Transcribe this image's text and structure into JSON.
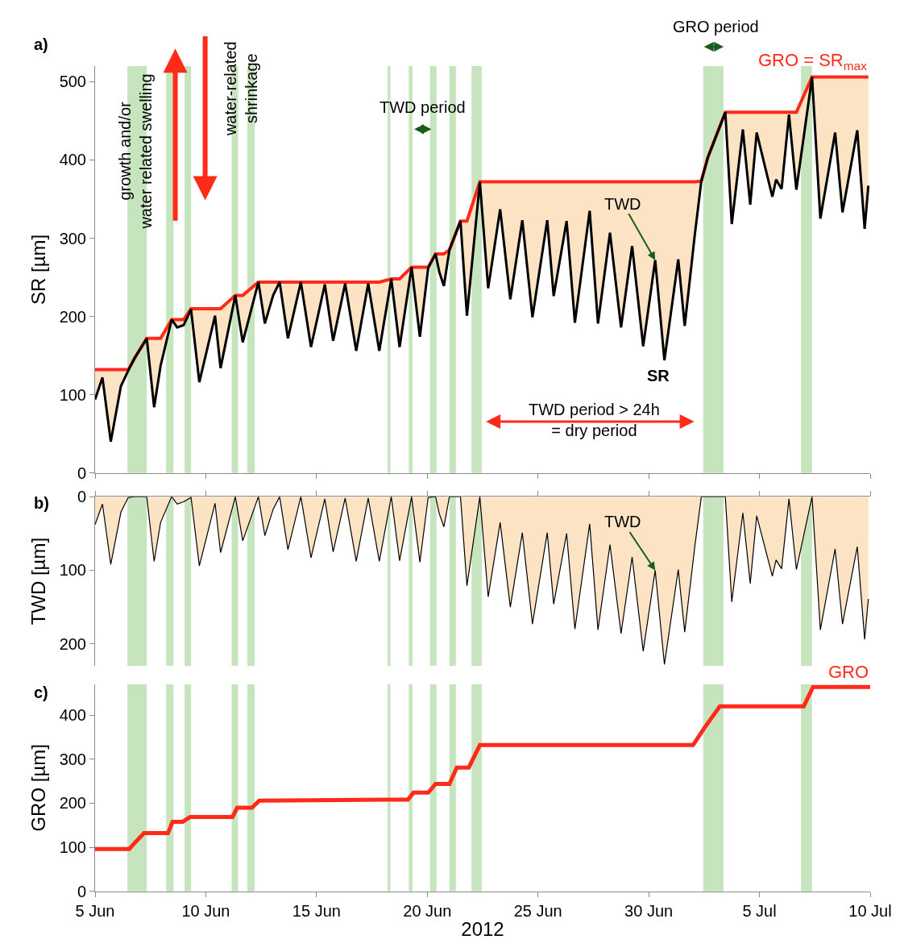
{
  "chart_data": [
    {
      "type": "line",
      "ylabel": "SR [µm]",
      "xlim": [
        "2012-06-05",
        "2012-07-10"
      ],
      "ylim": [
        0,
        520
      ],
      "yticks": [
        0,
        100,
        200,
        300,
        400,
        500
      ],
      "xticks": [
        {
          "value": "2012-06-05",
          "label": null
        },
        {
          "value": "2012-06-10",
          "label": null
        },
        {
          "value": "2012-06-15",
          "label": null
        },
        {
          "value": "2012-06-20",
          "label": null
        },
        {
          "value": "2012-06-25",
          "label": null
        },
        {
          "value": "2012-06-30",
          "label": null
        },
        {
          "value": "2012-07-05",
          "label": null
        },
        {
          "value": "2012-07-10",
          "label": null
        }
      ],
      "tick_labels": "y",
      "grid": false,
      "x": [
        "2012-06-05T00:00",
        "2012-06-05T08:00",
        "2012-06-05T17:00",
        "2012-06-06T04:00",
        "2012-06-06T12:00",
        "2012-06-06T19:00",
        "2012-06-07T08:00",
        "2012-06-07T16:00",
        "2012-06-07T23:00",
        "2012-06-08T11:00",
        "2012-06-08T17:00",
        "2012-06-09T00:00",
        "2012-06-09T08:00",
        "2012-06-09T17:00",
        "2012-06-10T10:00",
        "2012-06-10T16:00",
        "2012-06-11T08:00",
        "2012-06-11T16:00",
        "2012-06-12T09:00",
        "2012-06-12T16:00",
        "2012-06-13T01:00",
        "2012-06-13T08:00",
        "2012-06-13T17:00",
        "2012-06-14T07:00",
        "2012-06-14T18:00",
        "2012-06-15T09:00",
        "2012-06-15T18:00",
        "2012-06-16T07:00",
        "2012-06-16T19:00",
        "2012-06-17T08:00",
        "2012-06-17T20:00",
        "2012-06-18T09:00",
        "2012-06-18T18:00",
        "2012-06-19T07:00",
        "2012-06-19T16:00",
        "2012-06-20T01:00",
        "2012-06-20T09:00",
        "2012-06-20T13:00",
        "2012-06-20T18:00",
        "2012-06-21T00:00",
        "2012-06-21T12:00",
        "2012-06-21T19:00",
        "2012-06-22T09:00",
        "2012-06-22T18:00",
        "2012-06-23T07:00",
        "2012-06-23T18:00",
        "2012-06-24T07:00",
        "2012-06-24T18:00",
        "2012-06-25T10:00",
        "2012-06-25T17:00",
        "2012-06-26T07:00",
        "2012-06-26T16:00",
        "2012-06-27T08:00",
        "2012-06-27T17:00",
        "2012-06-28T06:00",
        "2012-06-28T18:00",
        "2012-06-29T06:00",
        "2012-06-29T18:00",
        "2012-06-30T07:00",
        "2012-06-30T17:00",
        "2012-07-01T08:00",
        "2012-07-01T15:00",
        "2012-07-02T02:00",
        "2012-07-02T09:00",
        "2012-07-02T16:00",
        "2012-07-03T11:00",
        "2012-07-03T18:00",
        "2012-07-04T06:00",
        "2012-07-04T14:00",
        "2012-07-04T21:00",
        "2012-07-05T14:00",
        "2012-07-05T18:00",
        "2012-07-06T00:00",
        "2012-07-06T08:00",
        "2012-07-06T16:00",
        "2012-07-07T09:00",
        "2012-07-07T18:00",
        "2012-07-08T10:00",
        "2012-07-08T18:00",
        "2012-07-09T10:00",
        "2012-07-09T18:00",
        "2012-07-09T22:00"
      ],
      "series": [
        {
          "name": "GRO = SR$_{max}$",
          "type": "line",
          "color": "#ff2a1a",
          "values": [
            132,
            132,
            132,
            132,
            132,
            147,
            172,
            172,
            172,
            196,
            196,
            196,
            210,
            210,
            210,
            210,
            227,
            227,
            244,
            244,
            244,
            244,
            244,
            244,
            244,
            244,
            244,
            244,
            244,
            244,
            244,
            248,
            248,
            263,
            263,
            263,
            280,
            280,
            280,
            285,
            322,
            322,
            372,
            372,
            372,
            372,
            372,
            372,
            372,
            372,
            372,
            372,
            372,
            372,
            372,
            372,
            372,
            372,
            372,
            372,
            372,
            372,
            372,
            373,
            403,
            461,
            461,
            461,
            461,
            461,
            461,
            461,
            461,
            461,
            461,
            506,
            506,
            506,
            506,
            506,
            506,
            506
          ],
          "upper": [
            132,
            132,
            132,
            132,
            132,
            147,
            172,
            172,
            172,
            196,
            196,
            196,
            210,
            210,
            210,
            210,
            227,
            227,
            244,
            244,
            244,
            244,
            244,
            244,
            244,
            244,
            244,
            244,
            244,
            244,
            244,
            248,
            248,
            263,
            263,
            263,
            280,
            280,
            280,
            285,
            322,
            322,
            372,
            372,
            372,
            372,
            372,
            372,
            372,
            372,
            372,
            372,
            372,
            372,
            372,
            372,
            372,
            372,
            372,
            372,
            372,
            372,
            372,
            373,
            403,
            461,
            461,
            461,
            461,
            461,
            461,
            461,
            461,
            461,
            461,
            506,
            506,
            506,
            506,
            506,
            506,
            506
          ],
          "lower": [
            94,
            122,
            40,
            111,
            131,
            147,
            172,
            84,
            137,
            196,
            186,
            189,
            209,
            116,
            201,
            134,
            227,
            167,
            244,
            191,
            227,
            244,
            172,
            244,
            161,
            241,
            169,
            242,
            156,
            242,
            156,
            248,
            161,
            263,
            174,
            262,
            280,
            257,
            239,
            285,
            322,
            201,
            372,
            236,
            337,
            222,
            323,
            199,
            323,
            226,
            322,
            192,
            335,
            191,
            307,
            186,
            290,
            162,
            272,
            144,
            273,
            188,
            305,
            373,
            403,
            461,
            318,
            439,
            343,
            435,
            353,
            375,
            363,
            458,
            362,
            506,
            325,
            435,
            333,
            438,
            312,
            367
          ]
        },
        {
          "name": "SR",
          "type": "line",
          "color": "#000000",
          "values": [
            94,
            122,
            40,
            111,
            131,
            147,
            172,
            84,
            137,
            196,
            186,
            189,
            209,
            116,
            201,
            134,
            227,
            167,
            244,
            191,
            227,
            244,
            172,
            244,
            161,
            241,
            169,
            242,
            156,
            242,
            156,
            248,
            161,
            263,
            174,
            262,
            280,
            257,
            239,
            285,
            322,
            201,
            372,
            236,
            337,
            222,
            323,
            199,
            323,
            226,
            322,
            192,
            335,
            191,
            307,
            186,
            290,
            162,
            272,
            144,
            273,
            188,
            305,
            373,
            403,
            461,
            318,
            439,
            343,
            435,
            353,
            375,
            363,
            458,
            362,
            506,
            325,
            435,
            333,
            438,
            312,
            367
          ]
        }
      ],
      "bands": [
        {
          "axis": "x",
          "from": "2012-06-06T11:00",
          "to": "2012-06-07T08:00",
          "color": "#c6e5be"
        },
        {
          "axis": "x",
          "from": "2012-06-08T05:00",
          "to": "2012-06-08T13:00",
          "color": "#c6e5be"
        },
        {
          "axis": "x",
          "from": "2012-06-09T01:00",
          "to": "2012-06-09T08:00",
          "color": "#c6e5be"
        },
        {
          "axis": "x",
          "from": "2012-06-11T04:00",
          "to": "2012-06-11T11:00",
          "color": "#c6e5be"
        },
        {
          "axis": "x",
          "from": "2012-06-11T21:00",
          "to": "2012-06-12T05:00",
          "color": "#c6e5be"
        },
        {
          "axis": "x",
          "from": "2012-06-18T05:00",
          "to": "2012-06-18T08:00",
          "color": "#c6e5be"
        },
        {
          "axis": "x",
          "from": "2012-06-19T04:00",
          "to": "2012-06-19T08:00",
          "color": "#c6e5be"
        },
        {
          "axis": "x",
          "from": "2012-06-20T03:00",
          "to": "2012-06-20T10:00",
          "color": "#c6e5be"
        },
        {
          "axis": "x",
          "from": "2012-06-21T00:00",
          "to": "2012-06-21T07:00",
          "color": "#c6e5be"
        },
        {
          "axis": "x",
          "from": "2012-06-22T00:00",
          "to": "2012-06-22T11:00",
          "color": "#c6e5be"
        },
        {
          "axis": "x",
          "from": "2012-07-02T11:00",
          "to": "2012-07-03T09:00",
          "color": "#c6e5be"
        },
        {
          "axis": "x",
          "from": "2012-07-06T21:00",
          "to": "2012-07-07T09:00",
          "color": "#c6e5be"
        }
      ],
      "annotations": [
        "a)",
        "growth and/or\nwater related swelling",
        "water-related\nshrinkage",
        "TWD period",
        "GRO period",
        {
          "text": "TWD",
          "x": "2012-06-30T07:00",
          "y": 272
        },
        "TWD period > 24h\n= dry period"
      ]
    },
    {
      "type": "area",
      "ylabel": "TWD [µm]",
      "xlim": [
        "2012-06-05",
        "2012-07-10"
      ],
      "ylim": [
        230,
        0
      ],
      "yticks": [
        0,
        100,
        200
      ],
      "xticks": [
        {
          "value": "2012-06-05",
          "label": null
        },
        {
          "value": "2012-06-10",
          "label": null
        },
        {
          "value": "2012-06-15",
          "label": null
        },
        {
          "value": "2012-06-20",
          "label": null
        },
        {
          "value": "2012-06-25",
          "label": null
        },
        {
          "value": "2012-06-30",
          "label": null
        },
        {
          "value": "2012-07-05",
          "label": null
        },
        {
          "value": "2012-07-10",
          "label": null
        }
      ],
      "tick_labels": "y",
      "grid": false,
      "x": [
        "2012-06-05T00:00",
        "2012-06-05T08:00",
        "2012-06-05T17:00",
        "2012-06-06T04:00",
        "2012-06-06T12:00",
        "2012-06-06T19:00",
        "2012-06-07T08:00",
        "2012-06-07T16:00",
        "2012-06-07T23:00",
        "2012-06-08T11:00",
        "2012-06-08T17:00",
        "2012-06-09T00:00",
        "2012-06-09T08:00",
        "2012-06-09T17:00",
        "2012-06-10T10:00",
        "2012-06-10T16:00",
        "2012-06-11T08:00",
        "2012-06-11T16:00",
        "2012-06-12T09:00",
        "2012-06-12T16:00",
        "2012-06-13T01:00",
        "2012-06-13T08:00",
        "2012-06-13T17:00",
        "2012-06-14T07:00",
        "2012-06-14T18:00",
        "2012-06-15T09:00",
        "2012-06-15T18:00",
        "2012-06-16T07:00",
        "2012-06-16T19:00",
        "2012-06-17T08:00",
        "2012-06-17T20:00",
        "2012-06-18T09:00",
        "2012-06-18T18:00",
        "2012-06-19T07:00",
        "2012-06-19T16:00",
        "2012-06-20T01:00",
        "2012-06-20T09:00",
        "2012-06-20T13:00",
        "2012-06-20T18:00",
        "2012-06-21T00:00",
        "2012-06-21T12:00",
        "2012-06-21T19:00",
        "2012-06-22T09:00",
        "2012-06-22T18:00",
        "2012-06-23T07:00",
        "2012-06-23T18:00",
        "2012-06-24T07:00",
        "2012-06-24T18:00",
        "2012-06-25T10:00",
        "2012-06-25T17:00",
        "2012-06-26T07:00",
        "2012-06-26T16:00",
        "2012-06-27T08:00",
        "2012-06-27T17:00",
        "2012-06-28T06:00",
        "2012-06-28T18:00",
        "2012-06-29T06:00",
        "2012-06-29T18:00",
        "2012-06-30T07:00",
        "2012-06-30T17:00",
        "2012-07-01T08:00",
        "2012-07-01T15:00",
        "2012-07-02T02:00",
        "2012-07-02T09:00",
        "2012-07-02T16:00",
        "2012-07-03T11:00",
        "2012-07-03T18:00",
        "2012-07-04T06:00",
        "2012-07-04T14:00",
        "2012-07-04T21:00",
        "2012-07-05T14:00",
        "2012-07-05T18:00",
        "2012-07-06T00:00",
        "2012-07-06T08:00",
        "2012-07-06T16:00",
        "2012-07-07T09:00",
        "2012-07-07T18:00",
        "2012-07-08T10:00",
        "2012-07-08T18:00",
        "2012-07-09T10:00",
        "2012-07-09T18:00",
        "2012-07-09T22:00"
      ],
      "series": [
        {
          "color": "#000000",
          "values": [
            38,
            10,
            92,
            21,
            1,
            0,
            0,
            88,
            35,
            0,
            10,
            7,
            1,
            94,
            9,
            76,
            0,
            60,
            0,
            53,
            17,
            0,
            72,
            0,
            83,
            3,
            75,
            2,
            88,
            2,
            88,
            0,
            87,
            0,
            89,
            1,
            0,
            23,
            41,
            0,
            0,
            121,
            0,
            136,
            35,
            150,
            49,
            173,
            49,
            146,
            50,
            180,
            37,
            181,
            65,
            186,
            82,
            210,
            100,
            228,
            99,
            184,
            67,
            0,
            0,
            0,
            143,
            22,
            118,
            26,
            108,
            86,
            98,
            3,
            99,
            0,
            181,
            71,
            173,
            68,
            194,
            139
          ]
        }
      ],
      "bands": [
        {
          "axis": "x",
          "from": "2012-06-06T11:00",
          "to": "2012-06-07T08:00",
          "color": "#c6e5be"
        },
        {
          "axis": "x",
          "from": "2012-06-08T05:00",
          "to": "2012-06-08T13:00",
          "color": "#c6e5be"
        },
        {
          "axis": "x",
          "from": "2012-06-09T01:00",
          "to": "2012-06-09T08:00",
          "color": "#c6e5be"
        },
        {
          "axis": "x",
          "from": "2012-06-11T04:00",
          "to": "2012-06-11T11:00",
          "color": "#c6e5be"
        },
        {
          "axis": "x",
          "from": "2012-06-11T21:00",
          "to": "2012-06-12T05:00",
          "color": "#c6e5be"
        },
        {
          "axis": "x",
          "from": "2012-06-18T05:00",
          "to": "2012-06-18T08:00",
          "color": "#c6e5be"
        },
        {
          "axis": "x",
          "from": "2012-06-19T04:00",
          "to": "2012-06-19T08:00",
          "color": "#c6e5be"
        },
        {
          "axis": "x",
          "from": "2012-06-20T03:00",
          "to": "2012-06-20T10:00",
          "color": "#c6e5be"
        },
        {
          "axis": "x",
          "from": "2012-06-21T00:00",
          "to": "2012-06-21T07:00",
          "color": "#c6e5be"
        },
        {
          "axis": "x",
          "from": "2012-06-22T00:00",
          "to": "2012-06-22T11:00",
          "color": "#c6e5be"
        },
        {
          "axis": "x",
          "from": "2012-07-02T11:00",
          "to": "2012-07-03T09:00",
          "color": "#c6e5be"
        },
        {
          "axis": "x",
          "from": "2012-07-06T21:00",
          "to": "2012-07-07T09:00",
          "color": "#c6e5be"
        }
      ],
      "annotations": [
        "b)",
        {
          "text": "TWD",
          "x": "2012-06-30T07:00",
          "y": 100
        }
      ]
    },
    {
      "type": "line",
      "ylabel": "GRO [µm]",
      "xlabel": "2012",
      "xlim": [
        "2012-06-05",
        "2012-07-10"
      ],
      "ylim": [
        0,
        470
      ],
      "yticks": [
        0,
        100,
        200,
        300,
        400
      ],
      "xticks": [
        {
          "value": "2012-06-05",
          "label": "5 Jun"
        },
        {
          "value": "2012-06-10",
          "label": "10 Jun"
        },
        {
          "value": "2012-06-15",
          "label": "15 Jun"
        },
        {
          "value": "2012-06-20",
          "label": "20 Jun"
        },
        {
          "value": "2012-06-25",
          "label": "25 Jun"
        },
        {
          "value": "2012-06-30",
          "label": "30 Jun"
        },
        {
          "value": "2012-07-05",
          "label": "5 Jul"
        },
        {
          "value": "2012-07-10",
          "label": "10 Jul"
        }
      ],
      "grid": false,
      "x": [
        "2012-06-05T00:00",
        "2012-06-06T13:00",
        "2012-06-06T19:00",
        "2012-06-07T05:00",
        "2012-06-08T07:00",
        "2012-06-08T12:00",
        "2012-06-08T23:00",
        "2012-06-09T07:00",
        "2012-06-11T05:00",
        "2012-06-11T10:00",
        "2012-06-12T02:00",
        "2012-06-12T10:00",
        "2012-06-18T05:00",
        "2012-06-19T03:00",
        "2012-06-19T09:00",
        "2012-06-20T01:00",
        "2012-06-20T09:00",
        "2012-06-21T00:00",
        "2012-06-21T08:00",
        "2012-06-21T21:00",
        "2012-06-22T09:00",
        "2012-07-02T00:00",
        "2012-07-02T12:00",
        "2012-07-03T05:00",
        "2012-07-07T00:00",
        "2012-07-07T10:00",
        "2012-07-10T00:00"
      ],
      "series": [
        {
          "name": "GRO",
          "color": "#ff2a1a",
          "values": [
            96,
            96,
            110,
            132,
            132,
            158,
            158,
            169,
            169,
            190,
            190,
            206,
            208,
            208,
            224,
            224,
            244,
            244,
            281,
            281,
            332,
            332,
            370,
            420,
            420,
            464,
            464
          ]
        }
      ],
      "bands": [
        {
          "axis": "x",
          "from": "2012-06-06T11:00",
          "to": "2012-06-07T08:00",
          "color": "#c6e5be"
        },
        {
          "axis": "x",
          "from": "2012-06-08T05:00",
          "to": "2012-06-08T13:00",
          "color": "#c6e5be"
        },
        {
          "axis": "x",
          "from": "2012-06-09T01:00",
          "to": "2012-06-09T08:00",
          "color": "#c6e5be"
        },
        {
          "axis": "x",
          "from": "2012-06-11T04:00",
          "to": "2012-06-11T11:00",
          "color": "#c6e5be"
        },
        {
          "axis": "x",
          "from": "2012-06-11T21:00",
          "to": "2012-06-12T05:00",
          "color": "#c6e5be"
        },
        {
          "axis": "x",
          "from": "2012-06-18T05:00",
          "to": "2012-06-18T08:00",
          "color": "#c6e5be"
        },
        {
          "axis": "x",
          "from": "2012-06-19T04:00",
          "to": "2012-06-19T08:00",
          "color": "#c6e5be"
        },
        {
          "axis": "x",
          "from": "2012-06-20T03:00",
          "to": "2012-06-20T10:00",
          "color": "#c6e5be"
        },
        {
          "axis": "x",
          "from": "2012-06-21T00:00",
          "to": "2012-06-21T07:00",
          "color": "#c6e5be"
        },
        {
          "axis": "x",
          "from": "2012-06-22T00:00",
          "to": "2012-06-22T11:00",
          "color": "#c6e5be"
        },
        {
          "axis": "x",
          "from": "2012-07-02T11:00",
          "to": "2012-07-03T09:00",
          "color": "#c6e5be"
        },
        {
          "axis": "x",
          "from": "2012-07-06T21:00",
          "to": "2012-07-07T09:00",
          "color": "#c6e5be"
        }
      ],
      "annotations": [
        "c)"
      ]
    }
  ]
}
